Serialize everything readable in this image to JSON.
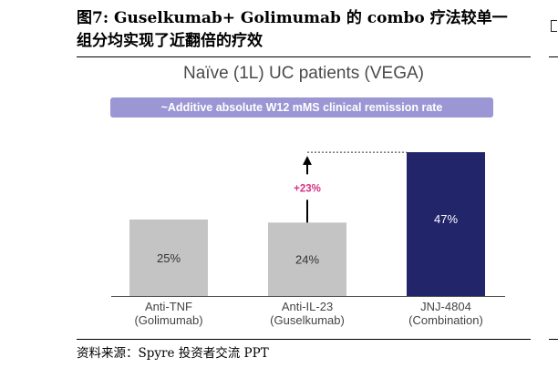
{
  "figure": {
    "title_line1": "图7: Guselkumab+ Golimumab 的 combo 疗法较单一",
    "title_line2": "组分均实现了近翻倍的疗效",
    "source": "资料来源：Spyre 投资者交流 PPT"
  },
  "chart_data": {
    "type": "bar",
    "title": "Naïve (1L) UC patients (VEGA)",
    "subtitle": "~Additive absolute W12 mMS clinical remission rate",
    "categories": [
      [
        "Anti-TNF",
        "(Golimumab)"
      ],
      [
        "Anti-IL-23",
        "(Guselkumab)"
      ],
      [
        "JNJ-4804",
        "(Combination)"
      ]
    ],
    "values": [
      25,
      24,
      47
    ],
    "value_labels": [
      "25%",
      "24%",
      "47%"
    ],
    "unit": "%",
    "ylim": [
      0,
      50
    ],
    "colors": [
      "#c4c4c4",
      "#c4c4c4",
      "#22256a"
    ],
    "label_colors": [
      "#333333",
      "#333333",
      "#ffffff"
    ],
    "annotation": {
      "text": "+23%",
      "from_bar": 1,
      "to_value": 47,
      "color": "#d63384"
    },
    "grid": false,
    "legend": "none"
  }
}
